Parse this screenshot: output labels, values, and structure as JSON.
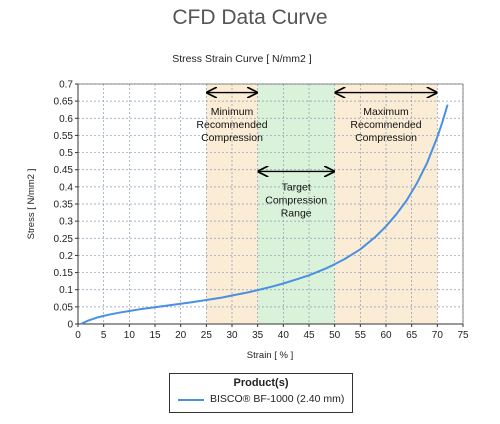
{
  "title": "CFD Data Curve",
  "colors": {
    "curve": "#4a90e2",
    "band_outer": "#fbecd5",
    "band_target": "#d9f2d9",
    "grid": "#8a9bb5"
  },
  "chart_data": {
    "type": "line",
    "title": "Stress Strain Curve [ N/mm2 ]",
    "xlabel": "Strain [ % ]",
    "ylabel": "Stress [ N/mm2 ]",
    "xlim": [
      0,
      75
    ],
    "ylim": [
      0,
      0.7
    ],
    "xticks": [
      "0",
      "5",
      "10",
      "15",
      "20",
      "25",
      "30",
      "35",
      "40",
      "45",
      "50",
      "55",
      "60",
      "65",
      "70",
      "75"
    ],
    "yticks": [
      "0",
      "0.05",
      "0.1",
      "0.15",
      "0.2",
      "0.25",
      "0.3",
      "0.35",
      "0.4",
      "0.45",
      "0.5",
      "0.55",
      "0.6",
      "0.65",
      "0.7"
    ],
    "grid": true,
    "series": [
      {
        "name": "BISCO® BF-1000 (2.40 mm)",
        "x": [
          0.5,
          2,
          4,
          6,
          8,
          10,
          12,
          15,
          18,
          20,
          22,
          25,
          28,
          30,
          33,
          35,
          38,
          40,
          43,
          45,
          48,
          50,
          52,
          55,
          58,
          60,
          62,
          64,
          66,
          68,
          70,
          71,
          72
        ],
        "y": [
          0.0,
          0.01,
          0.02,
          0.027,
          0.033,
          0.038,
          0.043,
          0.049,
          0.055,
          0.059,
          0.063,
          0.07,
          0.077,
          0.083,
          0.092,
          0.099,
          0.11,
          0.118,
          0.132,
          0.142,
          0.16,
          0.174,
          0.19,
          0.218,
          0.255,
          0.285,
          0.32,
          0.36,
          0.41,
          0.47,
          0.545,
          0.59,
          0.64
        ]
      }
    ],
    "bands": [
      {
        "label": "Minimum\nRecommended\nCompression",
        "from": 25,
        "to": 35,
        "arrow_y": 0.675,
        "label_y": 0.61
      },
      {
        "label": "Target\nCompression\nRange",
        "from": 35,
        "to": 50,
        "arrow_y": 0.445,
        "label_y": 0.39
      },
      {
        "label": "Maximum\nRecommended\nCompression",
        "from": 50,
        "to": 70,
        "arrow_y": 0.675,
        "label_y": 0.61
      }
    ],
    "legend": {
      "title": "Product(s)",
      "placement": "bottom"
    }
  }
}
